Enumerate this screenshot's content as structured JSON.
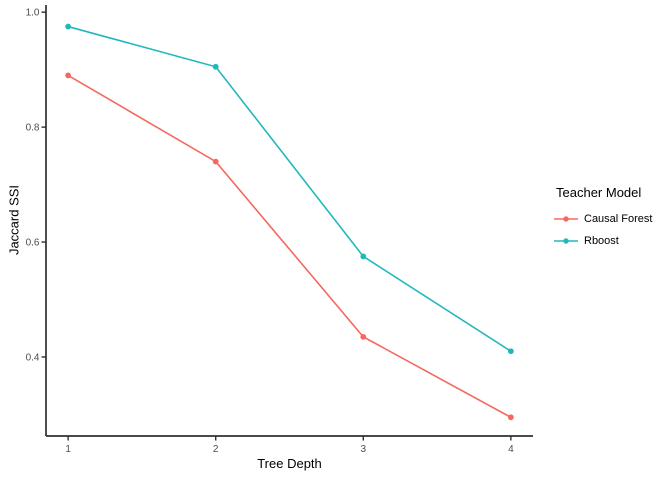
{
  "page": {
    "background": "#FFFFFF"
  },
  "chart_data": {
    "type": "line",
    "title": "",
    "xlabel": "Tree Depth",
    "ylabel": "Jaccard SSI",
    "x": [
      1,
      2,
      3,
      4
    ],
    "x_ticks": [
      "1",
      "2",
      "3",
      "4"
    ],
    "y_ticks": [
      "0.4",
      "0.6",
      "0.8",
      "1.0"
    ],
    "y_tick_values": [
      0.4,
      0.6,
      0.8,
      1.0
    ],
    "xlim": [
      0.85,
      4.15
    ],
    "ylim": [
      0.2625,
      1.0125
    ],
    "grid": false,
    "legend": {
      "title": "Teacher Model",
      "position": "right"
    },
    "series": [
      {
        "name": "Causal Forest",
        "color": "#F5685F",
        "marker": "circle",
        "values": [
          0.89,
          0.74,
          0.435,
          0.295
        ]
      },
      {
        "name": "Rboost",
        "color": "#21B8BD",
        "marker": "circle",
        "values": [
          0.975,
          0.905,
          0.575,
          0.41
        ]
      }
    ],
    "style": {
      "axis_line_color": "#303030",
      "tick_label_color": "#4D4D4D",
      "axis_title_color": "#000000"
    }
  }
}
